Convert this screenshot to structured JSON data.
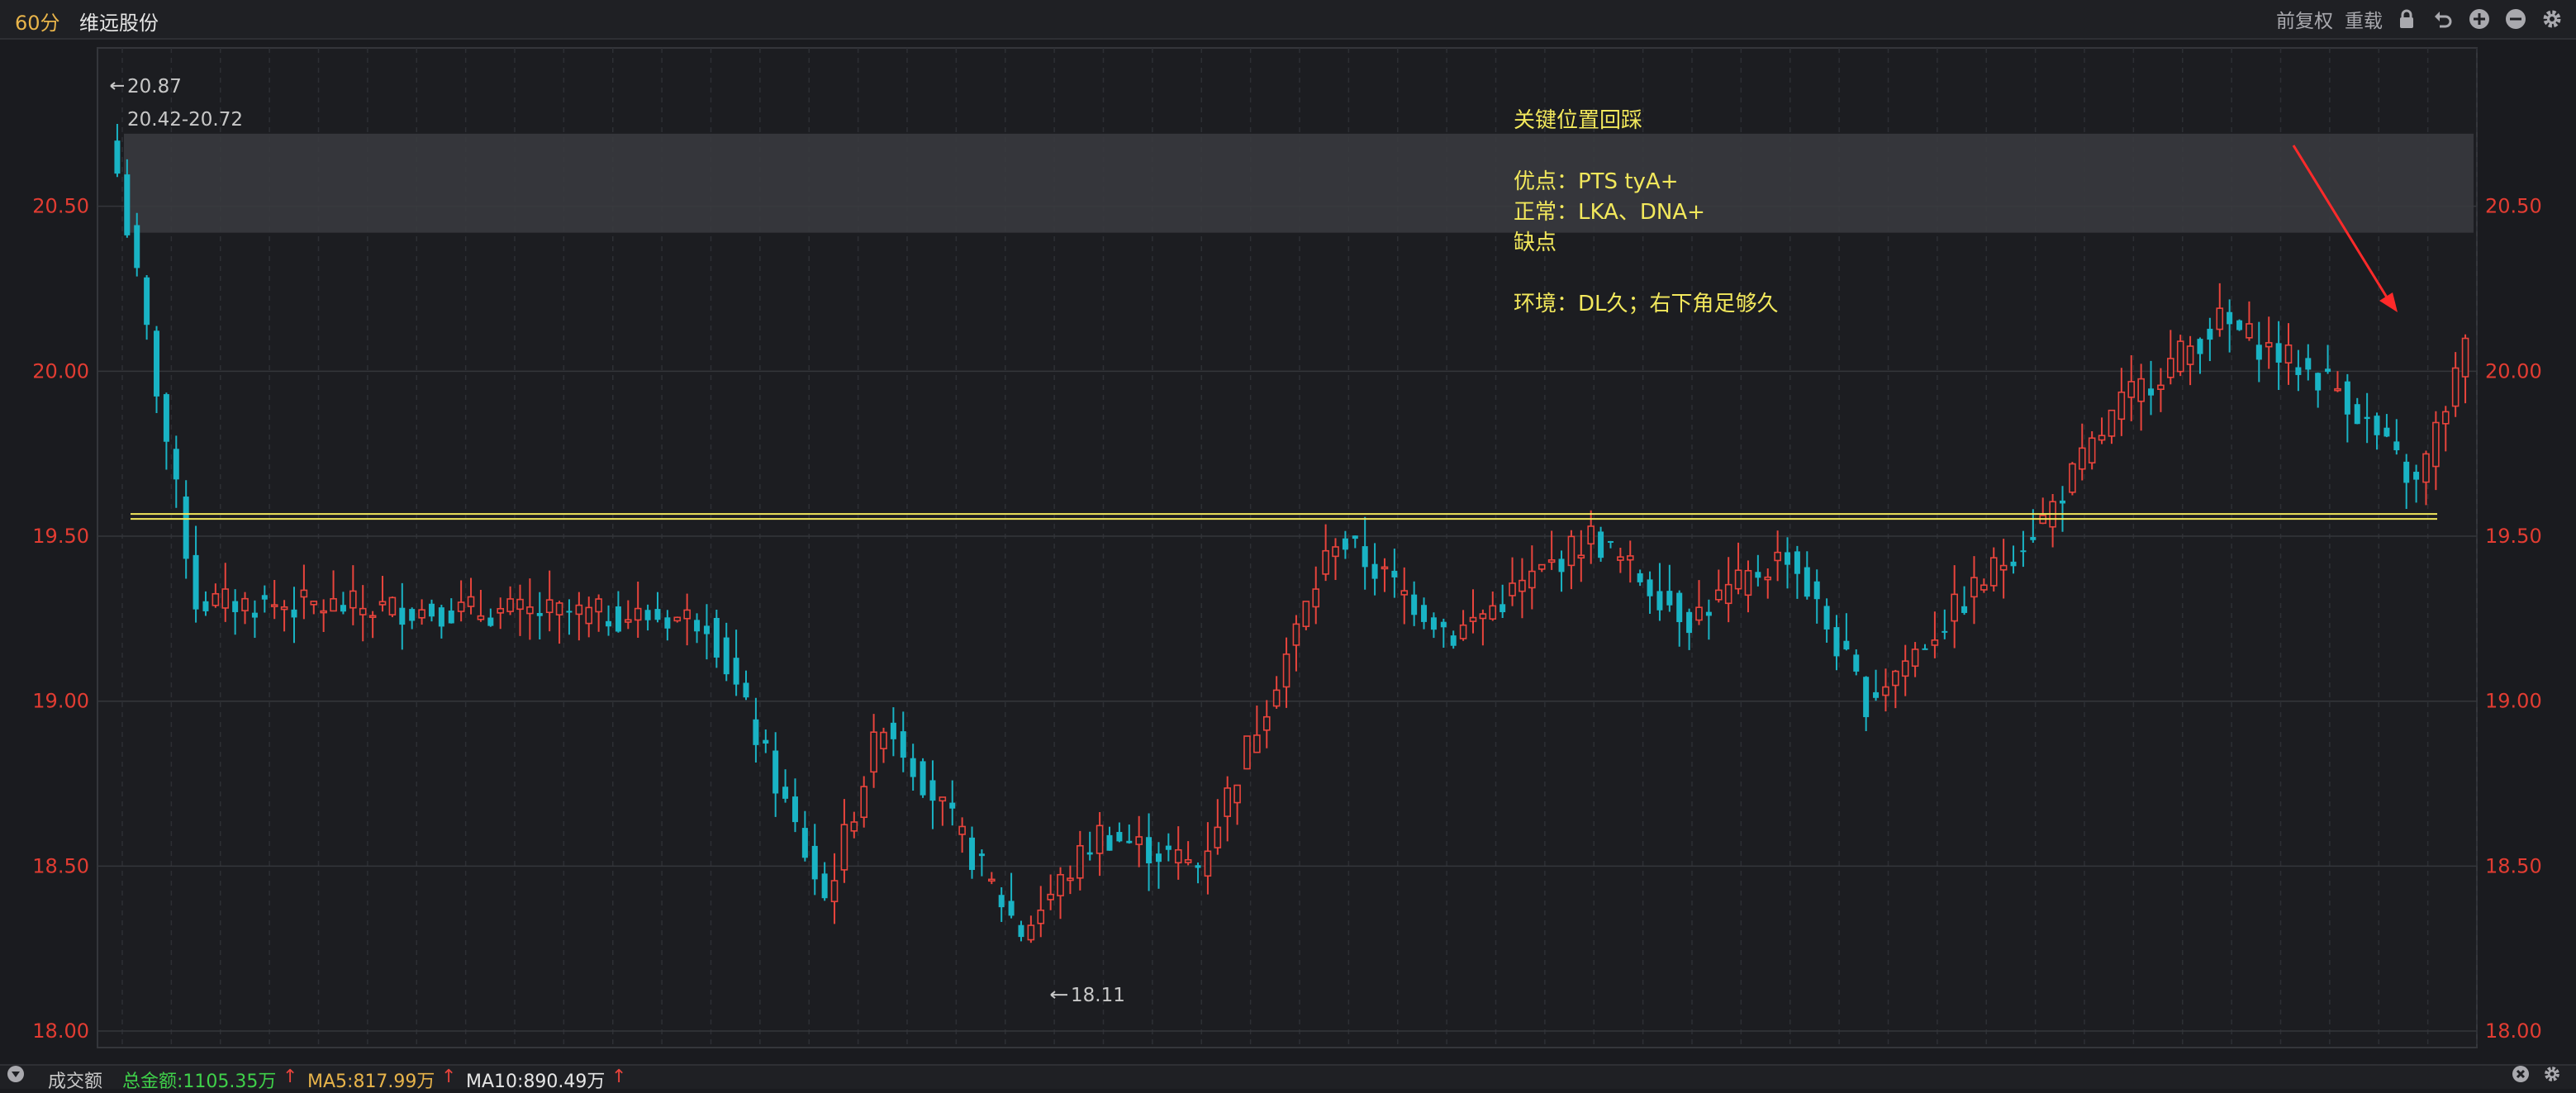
{
  "header": {
    "period": "60分",
    "stock_name": "维远股份",
    "adjust_label": "前复权",
    "redraw_label": "重载"
  },
  "icons": [
    "lock-icon",
    "undo-icon",
    "zoom-in-icon",
    "zoom-out-icon",
    "settings-icon"
  ],
  "colors": {
    "up": "#e8443c",
    "down": "#19b3c4",
    "price_axis": "#e23c32",
    "key_level_line": "#f2e85c",
    "annotation_text": "#f2e85c",
    "arrow": "#ff2a2a",
    "zone": "#3a3b40"
  },
  "chart_data": {
    "type": "candlestick",
    "ylim": [
      17.95,
      20.98
    ],
    "y_ticks": [
      "20.50",
      "20.00",
      "19.50",
      "19.00",
      "18.50",
      "18.00"
    ],
    "y_tick_values": [
      20.5,
      20.0,
      19.5,
      19.0,
      18.5,
      18.0
    ],
    "candle_count": 240,
    "max_label": "20.87",
    "min_label": "18.11",
    "zone_label": "20.42-20.72",
    "zone_range": [
      20.42,
      20.72
    ],
    "key_level": 19.56,
    "closes_by_segment": [
      {
        "from": 0,
        "to": 8,
        "start": 20.6,
        "end": 19.3
      },
      {
        "from": 8,
        "to": 60,
        "start": 19.3,
        "end": 19.25
      },
      {
        "from": 60,
        "to": 72,
        "start": 19.25,
        "end": 18.4
      },
      {
        "from": 72,
        "to": 78,
        "start": 18.4,
        "end": 18.95
      },
      {
        "from": 78,
        "to": 92,
        "start": 18.95,
        "end": 18.3
      },
      {
        "from": 92,
        "to": 100,
        "start": 18.3,
        "end": 18.6
      },
      {
        "from": 100,
        "to": 110,
        "start": 18.6,
        "end": 18.5
      },
      {
        "from": 110,
        "to": 124,
        "start": 18.5,
        "end": 19.5
      },
      {
        "from": 124,
        "to": 136,
        "start": 19.5,
        "end": 19.2
      },
      {
        "from": 136,
        "to": 150,
        "start": 19.2,
        "end": 19.5
      },
      {
        "from": 150,
        "to": 160,
        "start": 19.5,
        "end": 19.25
      },
      {
        "from": 160,
        "to": 170,
        "start": 19.25,
        "end": 19.45
      },
      {
        "from": 170,
        "to": 178,
        "start": 19.45,
        "end": 19.0
      },
      {
        "from": 178,
        "to": 196,
        "start": 19.0,
        "end": 19.55
      },
      {
        "from": 196,
        "to": 204,
        "start": 19.55,
        "end": 19.9
      },
      {
        "from": 204,
        "to": 214,
        "start": 19.9,
        "end": 20.15
      },
      {
        "from": 214,
        "to": 226,
        "start": 20.15,
        "end": 19.95
      },
      {
        "from": 226,
        "to": 234,
        "start": 19.95,
        "end": 19.65
      },
      {
        "from": 234,
        "to": 240,
        "start": 19.65,
        "end": 20.15
      }
    ]
  },
  "annotation": {
    "lines": [
      "关键位置回踩",
      "",
      "优点：PTS  tyA+",
      "正常：LKA、DNA+",
      "缺点",
      "",
      "环境：DL久；右下角足够久"
    ]
  },
  "footer": {
    "indicator": "成交额",
    "total": "总金额:1105.35万",
    "ma5": "MA5:817.99万",
    "ma10": "MA10:890.49万"
  }
}
